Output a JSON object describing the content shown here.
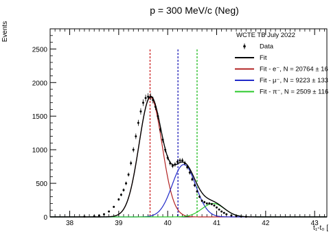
{
  "chart_data": {
    "type": "line",
    "title": "p = 300 MeV/c (Neg)",
    "xlabel": "t₁-t₀ [",
    "ylabel": "Events",
    "xlim": [
      37.6,
      43.25
    ],
    "ylim": [
      0,
      2800
    ],
    "xticks": [
      38,
      39,
      40,
      41,
      42,
      43
    ],
    "yticks": [
      0,
      500,
      1000,
      1500,
      2000,
      2500
    ],
    "grid": false,
    "legend_position": "top-right",
    "legend_header": "WCTE TB July 2022",
    "legend": [
      {
        "label": "Data",
        "kind": "marker",
        "color": "#000000"
      },
      {
        "label": "Fit",
        "kind": "line",
        "color": "#000000"
      },
      {
        "label": "Fit - e⁻, N = 20764 ± 16",
        "kind": "line",
        "color": "#b22222"
      },
      {
        "label": "Fit - μ⁻, N = 9223 ± 133",
        "kind": "line",
        "color": "#1f28c8"
      },
      {
        "label": "Fit - π⁻, N = 2509 ± 116",
        "kind": "line",
        "color": "#28c828"
      }
    ],
    "components": [
      {
        "name": "e",
        "color": "#b22222",
        "mean": 39.65,
        "sigma": 0.235,
        "amp": 1780,
        "vline": 39.64,
        "vline_color": "#cc2222"
      },
      {
        "name": "mu",
        "color": "#1f28c8",
        "mean": 40.33,
        "sigma": 0.24,
        "amp": 780,
        "vline": 40.21,
        "vline_color": "#1f1fb8"
      },
      {
        "name": "pi",
        "color": "#28c828",
        "mean": 40.93,
        "sigma": 0.23,
        "amp": 200,
        "vline": 40.6,
        "vline_color": "#22bb22"
      }
    ],
    "series": [
      {
        "name": "Data",
        "x": [
          38.3,
          38.5,
          38.6,
          38.7,
          38.8,
          38.9,
          39.0,
          39.05,
          39.1,
          39.15,
          39.2,
          39.25,
          39.3,
          39.35,
          39.4,
          39.45,
          39.5,
          39.55,
          39.6,
          39.65,
          39.7,
          39.75,
          39.8,
          39.85,
          39.9,
          39.95,
          40.0,
          40.05,
          40.1,
          40.15,
          40.2,
          40.25,
          40.3,
          40.35,
          40.4,
          40.45,
          40.5,
          40.55,
          40.6,
          40.65,
          40.7,
          40.75,
          40.8,
          40.85,
          40.9,
          40.95,
          41.0,
          41.05,
          41.1,
          41.15,
          41.2,
          41.3,
          41.4,
          41.5,
          41.6
        ],
        "y": [
          5,
          10,
          20,
          40,
          80,
          150,
          260,
          330,
          400,
          500,
          630,
          800,
          1000,
          1200,
          1400,
          1570,
          1700,
          1770,
          1790,
          1790,
          1740,
          1640,
          1500,
          1300,
          1150,
          1000,
          880,
          800,
          760,
          780,
          820,
          840,
          840,
          800,
          740,
          660,
          560,
          470,
          380,
          300,
          240,
          220,
          200,
          200,
          190,
          170,
          140,
          110,
          80,
          60,
          40,
          20,
          10,
          5,
          2
        ]
      }
    ]
  }
}
